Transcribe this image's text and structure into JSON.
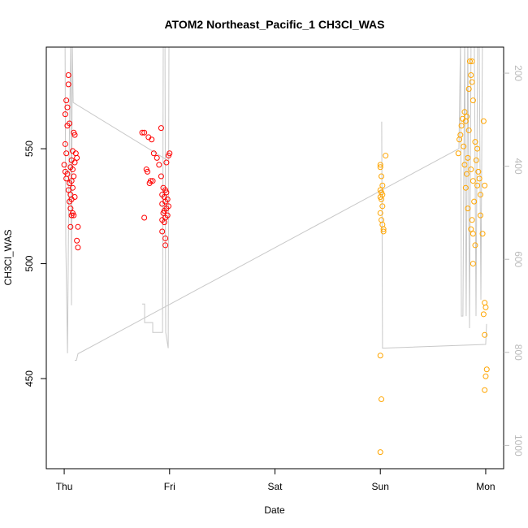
{
  "chart_data": {
    "type": "scatter",
    "title": "ATOM2 Northeast_Pacific_1 CH3Cl_WAS",
    "xlabel": "Date",
    "ylabel": "CH3Cl_WAS",
    "xlim": [
      -0.17,
      4.17
    ],
    "ylim": [
      410.8,
      594.2
    ],
    "y2lim": [
      1050,
      144
    ],
    "xticks": [
      {
        "value": 0,
        "label": "Thu"
      },
      {
        "value": 1,
        "label": "Fri"
      },
      {
        "value": 2,
        "label": "Sat"
      },
      {
        "value": 3,
        "label": "Sun"
      },
      {
        "value": 4,
        "label": "Mon"
      }
    ],
    "yticks": [
      450,
      500,
      550
    ],
    "y2ticks": [
      200,
      400,
      600,
      800,
      1000
    ],
    "series": [
      {
        "color": "#ff0000",
        "x": [
          0.01,
          0.02,
          0.03,
          0.04,
          0.04,
          0.03,
          0.05,
          0.01,
          0.02,
          0.07,
          0.0,
          0.06,
          0.08,
          0.01,
          0.03,
          0.09,
          0.02,
          0.07,
          0.05,
          0.08,
          0.04,
          0.06,
          0.1,
          0.07,
          0.05,
          0.06,
          0.08,
          0.09,
          0.06,
          0.11,
          0.12,
          0.1,
          0.1,
          0.09,
          0.08,
          0.12,
          0.13,
          0.13,
          0.07,
          0.74,
          0.76,
          0.8,
          0.83,
          0.76,
          0.85,
          0.88,
          0.9,
          0.78,
          0.79,
          0.92,
          0.84,
          0.81,
          0.94,
          0.96,
          0.97,
          0.93,
          0.95,
          0.98,
          0.96,
          0.93,
          0.99,
          0.97,
          0.95,
          0.94,
          0.98,
          0.96,
          0.93,
          0.95,
          0.93,
          0.96,
          0.96,
          0.92,
          1.0,
          0.99,
          0.97,
          0.82
        ],
        "values": [
          565,
          571,
          568,
          578,
          582,
          560,
          561,
          552,
          548,
          545,
          543,
          542,
          541,
          540,
          539,
          538,
          537,
          536,
          535,
          533,
          532,
          530,
          529,
          528,
          527,
          524,
          522,
          521,
          516,
          548,
          546,
          544,
          556,
          557,
          549,
          510,
          507,
          516,
          521,
          557,
          557,
          555,
          554,
          520,
          548,
          546,
          543,
          541,
          540,
          538,
          536,
          535,
          533,
          532,
          531,
          530,
          529,
          528,
          527,
          526,
          525,
          524,
          523,
          522,
          521,
          520,
          519,
          518,
          514,
          511,
          508,
          559,
          548,
          547,
          544,
          536
        ]
      },
      {
        "color": "#ffa500",
        "x": [
          3.0,
          3.0,
          3.01,
          3.02,
          3.0,
          3.01,
          3.02,
          3.0,
          3.01,
          3.02,
          3.0,
          3.01,
          3.02,
          3.03,
          3.03,
          3.05,
          3.0,
          3.01,
          3.0,
          3.85,
          3.87,
          3.86,
          3.87,
          3.84,
          3.88,
          3.8,
          3.82,
          3.78,
          3.81,
          3.77,
          3.84,
          3.76,
          3.75,
          3.9,
          3.79,
          3.92,
          3.74,
          3.83,
          3.91,
          3.8,
          3.86,
          3.93,
          3.82,
          3.94,
          3.88,
          3.92,
          3.81,
          3.95,
          3.89,
          3.83,
          3.95,
          3.87,
          3.86,
          3.88,
          3.9,
          3.88,
          3.97,
          3.98,
          3.99,
          3.99,
          4.0,
          3.98,
          3.99,
          4.01,
          4.0,
          3.99
        ],
        "values": [
          543,
          542,
          538,
          534,
          532,
          531,
          530,
          529,
          528,
          525,
          522,
          519,
          517,
          515,
          514,
          547,
          460,
          441,
          418,
          588,
          588,
          582,
          579,
          576,
          571,
          566,
          564,
          563,
          562,
          560,
          558,
          556,
          554,
          553,
          551,
          550,
          548,
          546,
          545,
          543,
          541,
          540,
          539,
          537,
          536,
          534,
          533,
          530,
          527,
          524,
          521,
          519,
          515,
          513,
          508,
          500,
          513,
          562,
          534,
          483,
          481,
          478,
          469,
          454,
          451,
          445
        ]
      },
      {
        "type": "line",
        "axis": "y2",
        "color": "#c8c8c8",
        "x": [
          0.008,
          0.015,
          0.031,
          0.046,
          0.062,
          0.069,
          0.077,
          0.085,
          0.971,
          null,
          0.1,
          0.116,
          0.131,
          3.746,
          3.761,
          3.769,
          3.784,
          3.8,
          3.815,
          3.83,
          3.846,
          3.861,
          3.892,
          3.908,
          3.923,
          3.938,
          3.954,
          3.969,
          null,
          0.74,
          0.763,
          0.763,
          0.84,
          0.84,
          0.933,
          0.94,
          0.956,
          0.963,
          0.987,
          0.994,
          1.01,
          null,
          3.013,
          3.021,
          4.0,
          4.008
        ],
        "values": [
          130,
          565,
          802,
          391,
          130,
          699,
          130,
          263,
          386,
          null,
          817,
          817,
          803,
          362,
          130,
          722,
          722,
          130,
          722,
          130,
          748,
          130,
          130,
          722,
          130,
          130,
          687,
          130,
          null,
          696,
          696,
          736,
          736,
          757,
          757,
          130,
          130,
          757,
          791,
          130,
          130,
          null,
          304,
          791,
          783,
          739
        ]
      }
    ]
  }
}
